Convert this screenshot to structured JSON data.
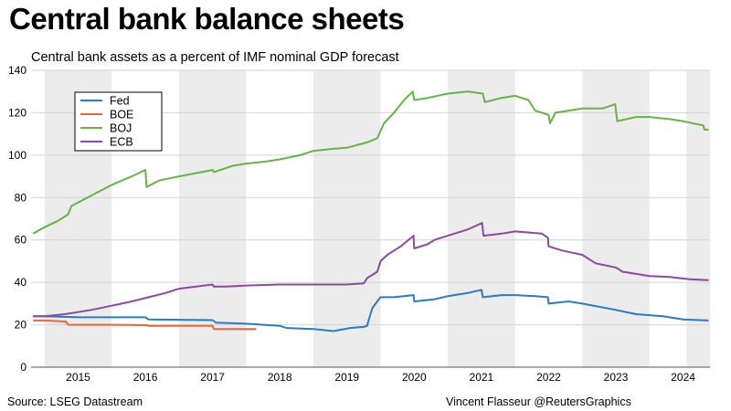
{
  "title": "Central bank balance sheets",
  "footer": {
    "source": "Source: LSEG Datastream",
    "credit": "Vincent Flasseur @ReutersGraphics"
  },
  "chart_data": {
    "type": "line",
    "subtitle": "Central bank assets as a percent of IMF nominal GDP forecast",
    "xlabel": "",
    "ylabel": "",
    "xlim": [
      2014.8,
      2024.9
    ],
    "ylim": [
      0,
      140
    ],
    "y_ticks": [
      0,
      20,
      40,
      60,
      80,
      100,
      120,
      140
    ],
    "x_tick_labels": [
      "2015",
      "2016",
      "2017",
      "2018",
      "2019",
      "2020",
      "2021",
      "2022",
      "2023",
      "2024"
    ],
    "shaded_years": [
      2015,
      2017,
      2019,
      2021,
      2023
    ],
    "grid": "horizontal",
    "legend_position": "top-left",
    "series": [
      {
        "name": "Fed",
        "color": "#2f7ab9",
        "points": [
          [
            2014.83,
            24
          ],
          [
            2015.0,
            24
          ],
          [
            2015.5,
            23.5
          ],
          [
            2016.5,
            23.5
          ],
          [
            2016.55,
            22.5
          ],
          [
            2017.5,
            22.2
          ],
          [
            2017.55,
            21
          ],
          [
            2018.0,
            20.5
          ],
          [
            2018.5,
            19.5
          ],
          [
            2018.6,
            18.5
          ],
          [
            2019.0,
            18
          ],
          [
            2019.3,
            17
          ],
          [
            2019.55,
            18.5
          ],
          [
            2019.75,
            19
          ],
          [
            2019.8,
            19.5
          ],
          [
            2019.83,
            23
          ],
          [
            2019.88,
            28
          ],
          [
            2019.95,
            31
          ],
          [
            2020.0,
            33
          ],
          [
            2020.2,
            33
          ],
          [
            2020.49,
            34
          ],
          [
            2020.5,
            31
          ],
          [
            2020.8,
            32
          ],
          [
            2021.0,
            33.5
          ],
          [
            2021.3,
            35
          ],
          [
            2021.5,
            36.5
          ],
          [
            2021.52,
            33
          ],
          [
            2021.8,
            34
          ],
          [
            2022.0,
            34
          ],
          [
            2022.3,
            33.5
          ],
          [
            2022.49,
            33
          ],
          [
            2022.5,
            30
          ],
          [
            2022.8,
            31
          ],
          [
            2023.0,
            30
          ],
          [
            2023.5,
            27
          ],
          [
            2023.8,
            25
          ],
          [
            2024.2,
            24
          ],
          [
            2024.5,
            22.5
          ],
          [
            2024.88,
            22
          ]
        ]
      },
      {
        "name": "BOE",
        "color": "#e8663d",
        "points": [
          [
            2014.83,
            22
          ],
          [
            2015.0,
            22
          ],
          [
            2015.32,
            21.5
          ],
          [
            2015.35,
            20
          ],
          [
            2016.0,
            20
          ],
          [
            2016.52,
            19.8
          ],
          [
            2016.55,
            19.5
          ],
          [
            2017.0,
            19.5
          ],
          [
            2017.5,
            19.5
          ],
          [
            2017.52,
            18
          ],
          [
            2018.0,
            18
          ],
          [
            2018.15,
            18
          ]
        ]
      },
      {
        "name": "BOJ",
        "color": "#6ab04c",
        "points": [
          [
            2014.83,
            63
          ],
          [
            2015.0,
            66
          ],
          [
            2015.2,
            69
          ],
          [
            2015.35,
            72
          ],
          [
            2015.4,
            76
          ],
          [
            2015.7,
            81
          ],
          [
            2016.0,
            86
          ],
          [
            2016.3,
            90
          ],
          [
            2016.5,
            93
          ],
          [
            2016.52,
            85
          ],
          [
            2016.7,
            88
          ],
          [
            2017.0,
            90
          ],
          [
            2017.5,
            93
          ],
          [
            2017.52,
            92
          ],
          [
            2017.8,
            95
          ],
          [
            2018.0,
            96
          ],
          [
            2018.3,
            97
          ],
          [
            2018.5,
            98
          ],
          [
            2018.8,
            100
          ],
          [
            2019.0,
            102
          ],
          [
            2019.3,
            103
          ],
          [
            2019.5,
            103.5
          ],
          [
            2019.8,
            106
          ],
          [
            2019.95,
            108
          ],
          [
            2020.05,
            115
          ],
          [
            2020.2,
            120
          ],
          [
            2020.35,
            126
          ],
          [
            2020.48,
            130
          ],
          [
            2020.5,
            126
          ],
          [
            2020.7,
            127
          ],
          [
            2021.0,
            129
          ],
          [
            2021.3,
            130
          ],
          [
            2021.52,
            129
          ],
          [
            2021.55,
            125
          ],
          [
            2021.8,
            127
          ],
          [
            2022.0,
            128
          ],
          [
            2022.2,
            126
          ],
          [
            2022.3,
            121
          ],
          [
            2022.5,
            119
          ],
          [
            2022.52,
            115
          ],
          [
            2022.6,
            120
          ],
          [
            2022.8,
            121
          ],
          [
            2023.0,
            122
          ],
          [
            2023.3,
            122
          ],
          [
            2023.49,
            124
          ],
          [
            2023.52,
            116
          ],
          [
            2023.8,
            118
          ],
          [
            2024.0,
            118
          ],
          [
            2024.3,
            117
          ],
          [
            2024.5,
            116
          ],
          [
            2024.8,
            114
          ],
          [
            2024.82,
            112
          ],
          [
            2024.88,
            112
          ]
        ]
      },
      {
        "name": "ECB",
        "color": "#8b4a9c",
        "points": [
          [
            2014.83,
            24
          ],
          [
            2015.0,
            24
          ],
          [
            2015.3,
            25
          ],
          [
            2015.7,
            27
          ],
          [
            2016.0,
            29
          ],
          [
            2016.3,
            31
          ],
          [
            2016.55,
            33
          ],
          [
            2016.8,
            35
          ],
          [
            2017.0,
            37
          ],
          [
            2017.5,
            39
          ],
          [
            2017.52,
            38
          ],
          [
            2017.7,
            38
          ],
          [
            2018.0,
            38.5
          ],
          [
            2018.5,
            39
          ],
          [
            2019.0,
            39
          ],
          [
            2019.5,
            39
          ],
          [
            2019.75,
            39.5
          ],
          [
            2019.8,
            42
          ],
          [
            2019.95,
            45
          ],
          [
            2020.0,
            50
          ],
          [
            2020.1,
            53
          ],
          [
            2020.3,
            57
          ],
          [
            2020.49,
            62
          ],
          [
            2020.5,
            56
          ],
          [
            2020.7,
            58
          ],
          [
            2020.8,
            60
          ],
          [
            2021.0,
            62
          ],
          [
            2021.3,
            65
          ],
          [
            2021.51,
            68
          ],
          [
            2021.53,
            62
          ],
          [
            2021.8,
            63
          ],
          [
            2022.0,
            64
          ],
          [
            2022.4,
            63
          ],
          [
            2022.49,
            61
          ],
          [
            2022.5,
            57
          ],
          [
            2022.7,
            55
          ],
          [
            2023.0,
            53
          ],
          [
            2023.2,
            49
          ],
          [
            2023.5,
            47
          ],
          [
            2023.6,
            45
          ],
          [
            2023.8,
            44
          ],
          [
            2024.0,
            43
          ],
          [
            2024.3,
            42.5
          ],
          [
            2024.6,
            41.5
          ],
          [
            2024.88,
            41
          ]
        ]
      }
    ]
  }
}
